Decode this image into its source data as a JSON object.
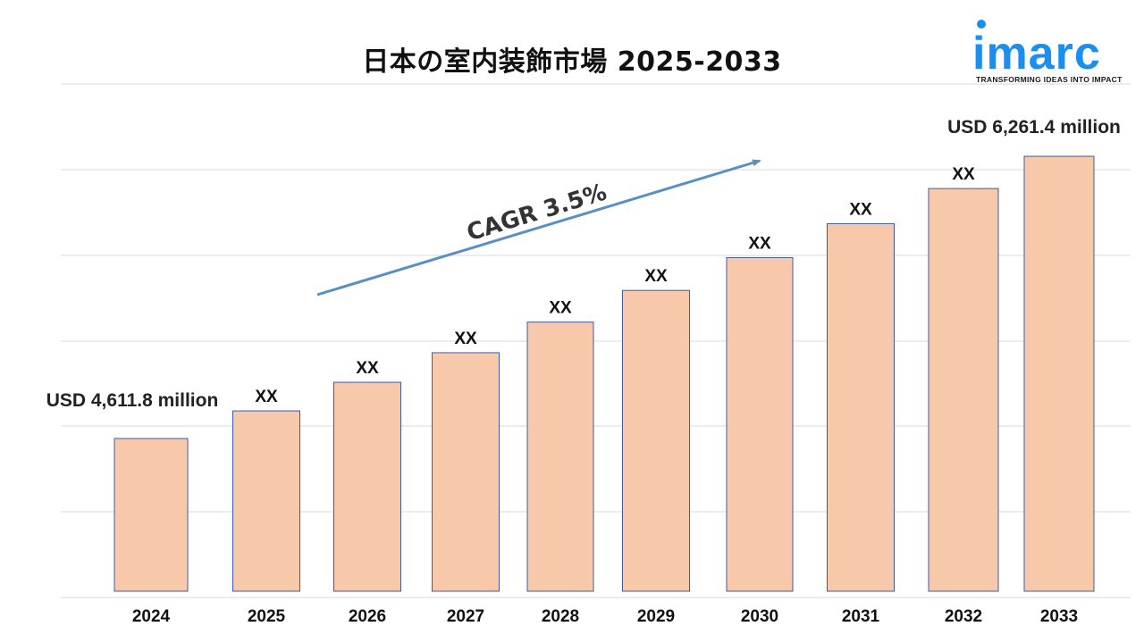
{
  "chart_data": {
    "type": "bar",
    "title": "日本の室内装飾市場 2025-2033",
    "categories": [
      "2024",
      "2025",
      "2026",
      "2027",
      "2028",
      "2029",
      "2030",
      "2031",
      "2032",
      "2033"
    ],
    "values": [
      4611.8,
      4773.2,
      4940.3,
      5113.2,
      5292.2,
      5477.4,
      5669.1,
      5867.5,
      6072.9,
      6261.4
    ],
    "data_labels": [
      "",
      "XX",
      "XX",
      "XX",
      "XX",
      "XX",
      "XX",
      "XX",
      "XX",
      ""
    ],
    "start_label": "USD 4,611.8 million",
    "end_label": "USD 6,261.4 million",
    "cagr_label": "CAGR 3.5%",
    "units": "USD million",
    "grid": true,
    "legend": "none",
    "colors": {
      "bar_fill": "#f7c9aa",
      "bar_stroke": "#3b5ba8",
      "arrow": "#5b8fc4"
    }
  },
  "logo": {
    "word": "imarc",
    "tagline": "TRANSFORMING IDEAS INTO IMPACT",
    "color": "#1c8ef0"
  }
}
